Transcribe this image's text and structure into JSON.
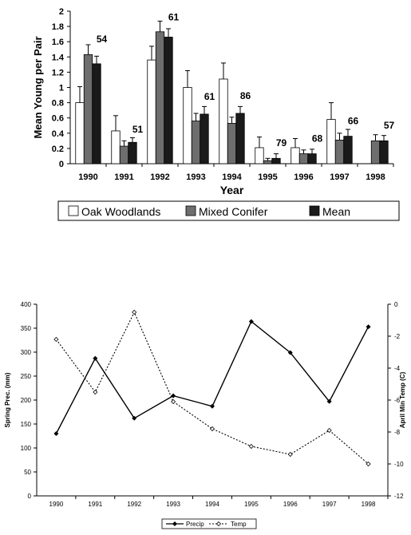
{
  "chart_data": [
    {
      "type": "bar",
      "title": "",
      "xlabel": "Year",
      "ylabel": "Mean Young per Pair",
      "ylim": [
        0,
        2
      ],
      "yticks": [
        "0",
        "0.2",
        "0.4",
        "0.6",
        "0.8",
        "1",
        "1.2",
        "1.4",
        "1.6",
        "1.8",
        "2"
      ],
      "categories": [
        "1990",
        "1991",
        "1992",
        "1993",
        "1994",
        "1995",
        "1996",
        "1997",
        "1998"
      ],
      "series": [
        {
          "name": "Oak Woodlands",
          "values": [
            0.8,
            0.43,
            1.36,
            1.0,
            1.11,
            0.21,
            0.21,
            0.58,
            null
          ],
          "errors": [
            0.21,
            0.2,
            0.18,
            0.22,
            0.21,
            0.14,
            0.12,
            0.22,
            null
          ],
          "fill": "#ffffff"
        },
        {
          "name": "Mixed Conifer",
          "values": [
            1.43,
            0.23,
            1.73,
            0.56,
            0.53,
            0.04,
            0.13,
            0.31,
            0.3
          ],
          "errors": [
            0.13,
            0.07,
            0.14,
            0.1,
            0.08,
            0.03,
            0.05,
            0.09,
            0.08
          ],
          "fill": "#6e6e6e"
        },
        {
          "name": "Mean",
          "values": [
            1.31,
            0.28,
            1.66,
            0.65,
            0.66,
            0.07,
            0.13,
            0.36,
            0.3
          ],
          "errors": [
            0.1,
            0.06,
            0.11,
            0.1,
            0.09,
            0.06,
            0.06,
            0.09,
            0.07
          ],
          "fill": "#1a1a1a"
        }
      ],
      "annotations": [
        {
          "category": "1990",
          "text": "54",
          "y": 1.59
        },
        {
          "category": "1991",
          "text": "51",
          "y": 0.41
        },
        {
          "category": "1992",
          "text": "61",
          "y": 1.88
        },
        {
          "category": "1993",
          "text": "61",
          "y": 0.84
        },
        {
          "category": "1994",
          "text": "86",
          "y": 0.85
        },
        {
          "category": "1995",
          "text": "79",
          "y": 0.23
        },
        {
          "category": "1996",
          "text": "68",
          "y": 0.29
        },
        {
          "category": "1997",
          "text": "66",
          "y": 0.52
        },
        {
          "category": "1998",
          "text": "57",
          "y": 0.46
        }
      ],
      "legend": {
        "placement": "bottom",
        "entries": [
          "Oak Woodlands",
          "Mixed Conifer",
          "Mean"
        ]
      }
    },
    {
      "type": "line",
      "title": "",
      "xlabel": "",
      "ylabel": "Spring Prec. (mm)",
      "y2label": "April Min Temp (C)",
      "ylim": [
        0,
        400
      ],
      "y2lim": [
        -12,
        0
      ],
      "yticks": [
        "0",
        "50",
        "100",
        "150",
        "200",
        "250",
        "300",
        "350",
        "400"
      ],
      "y2ticks": [
        "0",
        "-2",
        "-4",
        "-6",
        "-8",
        "-10",
        "-12"
      ],
      "x": [
        "1990",
        "1991",
        "1992",
        "1993",
        "1994",
        "1995",
        "1996",
        "1997",
        "1998"
      ],
      "series": [
        {
          "name": "Precip",
          "axis": "left",
          "values": [
            130,
            287,
            162,
            209,
            187,
            364,
            299,
            197,
            353
          ],
          "style": "solid"
        },
        {
          "name": "Temp",
          "axis": "right",
          "values": [
            -2.2,
            -5.5,
            -0.5,
            -6.1,
            -7.8,
            -8.9,
            -9.4,
            -7.9,
            -10.0
          ],
          "style": "dotted"
        }
      ],
      "legend": {
        "placement": "bottom",
        "entries": [
          "Precip",
          "Temp"
        ]
      }
    }
  ]
}
